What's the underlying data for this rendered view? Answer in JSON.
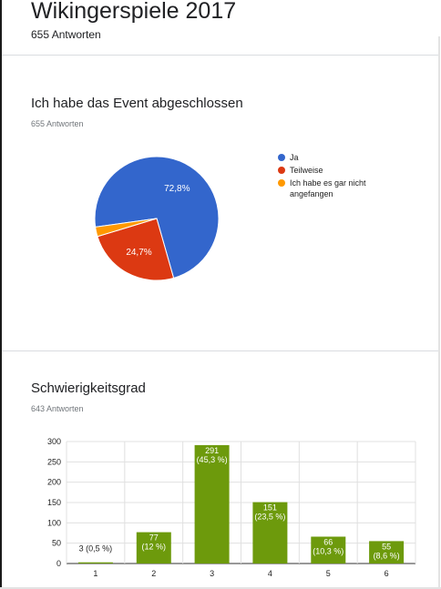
{
  "form": {
    "title": "Wikingerspiele 2017",
    "responses": "655 Antworten"
  },
  "questions": [
    {
      "title": "Ich habe das Event abgeschlossen",
      "responses": "655 Antworten"
    },
    {
      "title": "Schwierigkeitsgrad",
      "responses": "643 Antworten"
    }
  ],
  "colors": {
    "blue": "#3366cc",
    "red": "#dc3912",
    "orange": "#ff9900",
    "green": "#6d9a0c",
    "grid": "#e0e0e0",
    "axis": "#333333"
  },
  "chart_data": [
    {
      "type": "pie",
      "labels": [
        "Ja",
        "Teilweise",
        "Ich habe es gar nicht angefangen"
      ],
      "values": [
        72.8,
        24.7,
        2.5
      ],
      "slice_labels": [
        "72,8%",
        "24,7%",
        ""
      ],
      "legend_lines": [
        [
          "Ja"
        ],
        [
          "Teilweise"
        ],
        [
          "Ich habe es gar nicht",
          "angefangen"
        ]
      ],
      "legend": "right"
    },
    {
      "type": "bar",
      "categories": [
        "1",
        "2",
        "3",
        "4",
        "5",
        "6"
      ],
      "values": [
        3,
        77,
        291,
        151,
        66,
        55
      ],
      "data_labels": [
        [
          "3 (0,5 %)"
        ],
        [
          "77",
          "(12 %)"
        ],
        [
          "291",
          "(45,3 %)"
        ],
        [
          "151",
          "(23,5 %)"
        ],
        [
          "66",
          "(10,3 %)"
        ],
        [
          "55",
          "(8,6 %)"
        ]
      ],
      "yticks": [
        0,
        50,
        100,
        150,
        200,
        250,
        300
      ],
      "ylim": [
        0,
        300
      ],
      "grid": true
    }
  ]
}
